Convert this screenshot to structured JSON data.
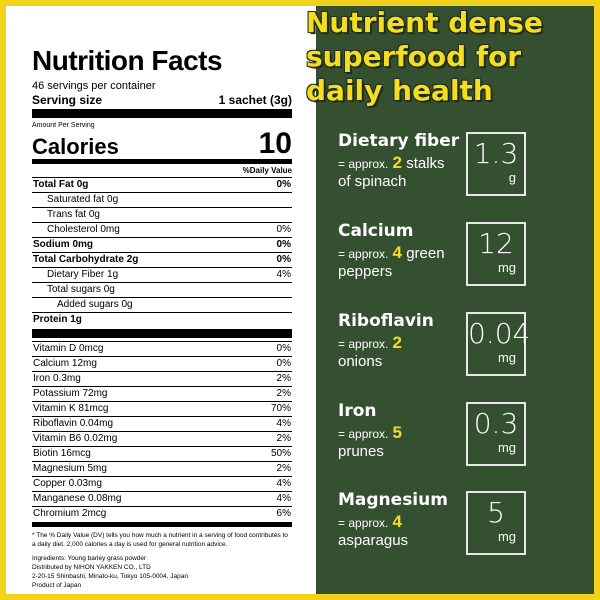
{
  "label": {
    "title": "Nutrition Facts",
    "servings": "46 servings per container",
    "serving_size_label": "Serving size",
    "serving_size_value": "1 sachet (3g)",
    "amount_per": "Amount Per Serving",
    "calories_label": "Calories",
    "calories_value": "10",
    "dv_header": "%Daily Value",
    "rows": [
      {
        "name": "Total Fat 0g",
        "dv": "0%"
      },
      {
        "name": "Saturated fat 0g",
        "dv": ""
      },
      {
        "name": "Trans fat 0g",
        "dv": ""
      },
      {
        "name": "Cholesterol 0mg",
        "dv": "0%"
      },
      {
        "name": "Sodium 0mg",
        "dv": "0%"
      },
      {
        "name": "Total Carbohydrate 2g",
        "dv": "0%"
      },
      {
        "name": "Dietary Fiber 1g",
        "dv": "4%"
      },
      {
        "name": "Total sugars 0g",
        "dv": ""
      },
      {
        "name": "Added sugars 0g",
        "dv": ""
      },
      {
        "name": "Protein 1g",
        "dv": ""
      }
    ],
    "vitamins": [
      {
        "name": "Vitamin D 0mcg",
        "dv": "0%"
      },
      {
        "name": "Calcium 12mg",
        "dv": "0%"
      },
      {
        "name": "Iron 0.3mg",
        "dv": "2%"
      },
      {
        "name": "Potassium 72mg",
        "dv": "2%"
      },
      {
        "name": "Vitamin K 81mcg",
        "dv": "70%"
      },
      {
        "name": "Riboflavin 0.04mg",
        "dv": "4%"
      },
      {
        "name": "Vitamin B6 0.02mg",
        "dv": "2%"
      },
      {
        "name": "Biotin 16mcg",
        "dv": "50%"
      },
      {
        "name": "Magnesium 5mg",
        "dv": "2%"
      },
      {
        "name": "Copper 0.03mg",
        "dv": "4%"
      },
      {
        "name": "Manganese 0.08mg",
        "dv": "4%"
      },
      {
        "name": "Chromium 2mcg",
        "dv": "6%"
      }
    ],
    "footnote": "* The % Daily Value (DV) tells you how much a nutrient in a serving of food contributes to a daily diet. 2,000 calories a day is used for general nutrition advice.",
    "ingredients": "Ingredients: Young barley grass powder",
    "distributor": "Distributed by NIHON YAKKEN CO., LTD",
    "address": "2-20-15 Shinbashi, Minato-ku, Tokyo 105-0004, Japan",
    "origin": "Product of Japan"
  },
  "headline": {
    "line1": "Nutrient dense",
    "line2": "superfood for",
    "line3": "daily health"
  },
  "nutrients": [
    {
      "name": "Dietary fiber",
      "approx": "= approx.",
      "count": "2",
      "item_a": "stalks",
      "item_b": "of spinach",
      "value": "1.3",
      "unit": "g"
    },
    {
      "name": "Calcium",
      "approx": "= approx.",
      "count": "4",
      "item_a": "green",
      "item_b": "peppers",
      "value": "12",
      "unit": "mg"
    },
    {
      "name": "Riboflavin",
      "approx": "= approx.",
      "count": "2",
      "item_a": "",
      "item_b": "onions",
      "value": "0.04",
      "unit": "mg"
    },
    {
      "name": "Iron",
      "approx": "= approx.",
      "count": "5",
      "item_a": "",
      "item_b": "prunes",
      "value": "0.3",
      "unit": "mg"
    },
    {
      "name": "Magnesium",
      "approx": "= approx.",
      "count": "4",
      "item_a": "",
      "item_b": "asparagus",
      "value": "5",
      "unit": "mg"
    }
  ],
  "colors": {
    "frame": "#f2d21b",
    "panel": "#355030",
    "accent": "#f5dd22"
  }
}
